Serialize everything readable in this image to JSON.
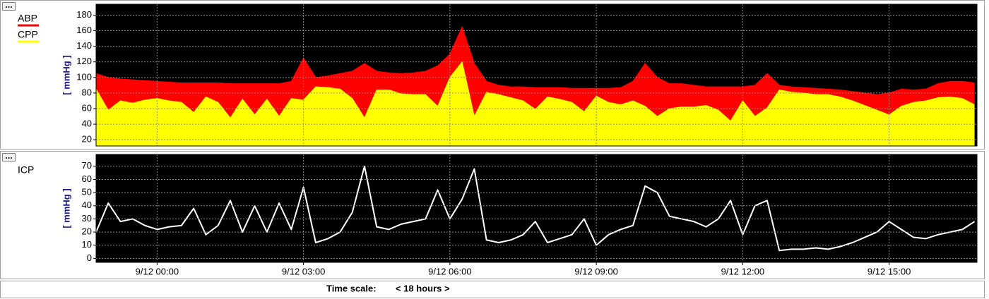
{
  "chart_data": [
    {
      "type": "area",
      "y_label": "[ mmHg ]",
      "x": [
        -1.25,
        -1,
        -0.75,
        -0.5,
        -0.25,
        0,
        0.25,
        0.5,
        0.75,
        1,
        1.25,
        1.5,
        1.75,
        2,
        2.25,
        2.5,
        2.75,
        3,
        3.25,
        3.5,
        3.75,
        4,
        4.25,
        4.5,
        4.75,
        5,
        5.25,
        5.5,
        5.75,
        6,
        6.25,
        6.5,
        6.75,
        7,
        7.25,
        7.5,
        7.75,
        8,
        8.25,
        8.5,
        8.75,
        9,
        9.25,
        9.5,
        9.75,
        10,
        10.25,
        10.5,
        10.75,
        11,
        11.25,
        11.5,
        11.75,
        12,
        12.25,
        12.5,
        12.75,
        13,
        13.25,
        13.5,
        13.75,
        14,
        14.25,
        14.5,
        14.75,
        15,
        15.25,
        15.5,
        15.75,
        16,
        16.25,
        16.5,
        16.75
      ],
      "xlim": [
        -1.25,
        16.8
      ],
      "ylim": [
        12,
        194
      ],
      "yticks": [
        20,
        40,
        60,
        80,
        100,
        120,
        140,
        160,
        180
      ],
      "grid": true,
      "series": [
        {
          "name": "ABP",
          "color": "#ff0000",
          "values": [
            105,
            100,
            98,
            97,
            96,
            95,
            94,
            93,
            93,
            93,
            93,
            92,
            92,
            92,
            92,
            92,
            95,
            125,
            100,
            102,
            105,
            108,
            118,
            108,
            106,
            105,
            106,
            108,
            115,
            130,
            165,
            118,
            95,
            90,
            88,
            88,
            87,
            87,
            87,
            86,
            86,
            86,
            86,
            87,
            95,
            118,
            100,
            92,
            92,
            90,
            88,
            88,
            88,
            88,
            90,
            105,
            90,
            88,
            87,
            86,
            85,
            84,
            82,
            80,
            78,
            80,
            85,
            84,
            85,
            92,
            95,
            95,
            93
          ]
        },
        {
          "name": "CPP",
          "color": "#ffff00",
          "values": [
            85,
            58,
            70,
            67,
            71,
            73,
            70,
            68,
            55,
            75,
            68,
            48,
            72,
            52,
            72,
            50,
            73,
            71,
            88,
            87,
            85,
            73,
            48,
            84,
            84,
            79,
            78,
            78,
            63,
            100,
            120,
            50,
            81,
            78,
            74,
            70,
            59,
            75,
            72,
            68,
            56,
            76,
            68,
            65,
            70,
            63,
            50,
            60,
            62,
            62,
            64,
            58,
            44,
            70,
            50,
            61,
            84,
            81,
            80,
            78,
            78,
            75,
            70,
            64,
            58,
            52,
            63,
            68,
            70,
            74,
            75,
            73,
            65
          ]
        }
      ]
    },
    {
      "type": "line",
      "y_label": "[ mmHg ]",
      "x": [
        -1.25,
        -1,
        -0.75,
        -0.5,
        -0.25,
        0,
        0.25,
        0.5,
        0.75,
        1,
        1.25,
        1.5,
        1.75,
        2,
        2.25,
        2.5,
        2.75,
        3,
        3.25,
        3.5,
        3.75,
        4,
        4.25,
        4.5,
        4.75,
        5,
        5.25,
        5.5,
        5.75,
        6,
        6.25,
        6.5,
        6.75,
        7,
        7.25,
        7.5,
        7.75,
        8,
        8.25,
        8.5,
        8.75,
        9,
        9.25,
        9.5,
        9.75,
        10,
        10.25,
        10.5,
        10.75,
        11,
        11.25,
        11.5,
        11.75,
        12,
        12.25,
        12.5,
        12.75,
        13,
        13.25,
        13.5,
        13.75,
        14,
        14.25,
        14.5,
        14.75,
        15,
        15.25,
        15.5,
        15.75,
        16,
        16.25,
        16.5,
        16.75
      ],
      "xlim": [
        -1.25,
        16.8
      ],
      "xticks": [
        {
          "value": 0,
          "label": "9/12 00:00"
        },
        {
          "value": 3,
          "label": "9/12 03:00"
        },
        {
          "value": 6,
          "label": "9/12 06:00"
        },
        {
          "value": 9,
          "label": "9/12 09:00"
        },
        {
          "value": 12,
          "label": "9/12 12:00"
        },
        {
          "value": 15,
          "label": "9/12 15:00"
        }
      ],
      "ylim": [
        -3,
        79
      ],
      "yticks": [
        0,
        10,
        20,
        30,
        40,
        50,
        60,
        70
      ],
      "grid": true,
      "series": [
        {
          "name": "ICP",
          "color": "#ffffff",
          "values": [
            20,
            42,
            28,
            30,
            25,
            22,
            24,
            25,
            38,
            18,
            25,
            44,
            20,
            40,
            20,
            42,
            22,
            54,
            12,
            15,
            20,
            35,
            70,
            24,
            22,
            26,
            28,
            30,
            52,
            30,
            45,
            68,
            14,
            12,
            14,
            18,
            28,
            12,
            15,
            18,
            30,
            10,
            18,
            22,
            25,
            55,
            50,
            32,
            30,
            28,
            24,
            30,
            44,
            18,
            40,
            44,
            6,
            7,
            7,
            8,
            7,
            9,
            12,
            16,
            20,
            28,
            22,
            16,
            15,
            18,
            20,
            22,
            28
          ]
        }
      ]
    }
  ],
  "footer": {
    "label": "Time scale:",
    "value": "< 18 hours >"
  }
}
